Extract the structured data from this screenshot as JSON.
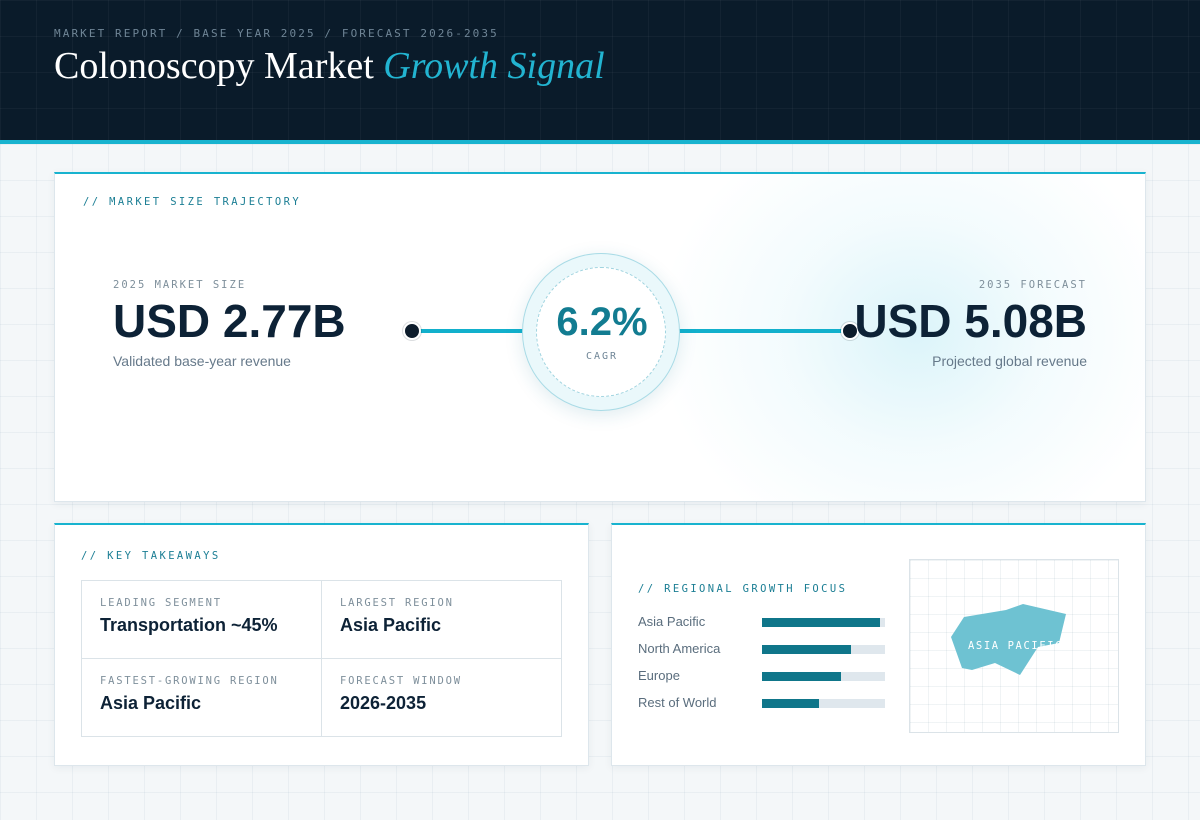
{
  "header": {
    "eyebrow": "MARKET REPORT / BASE YEAR 2025 / FORECAST 2026-2035",
    "title_main": "Colonoscopy Market",
    "title_accent": "Growth Signal"
  },
  "trajectory": {
    "section_label": "// MARKET SIZE TRAJECTORY",
    "start": {
      "caption": "2025 MARKET SIZE",
      "value": "USD 2.77B",
      "sub": "Validated base-year revenue"
    },
    "end": {
      "caption": "2035 FORECAST",
      "value": "USD 5.08B",
      "sub": "Projected global revenue"
    },
    "cagr": {
      "value": "6.2%",
      "caption": "CAGR"
    }
  },
  "takeaways": {
    "section_label": "// KEY TAKEAWAYS",
    "items": [
      {
        "caption": "LEADING SEGMENT",
        "value": "Transportation ~45%"
      },
      {
        "caption": "LARGEST REGION",
        "value": "Asia Pacific"
      },
      {
        "caption": "FASTEST-GROWING REGION",
        "value": "Asia Pacific"
      },
      {
        "caption": "FORECAST WINDOW",
        "value": "2026-2035"
      }
    ]
  },
  "regional": {
    "section_label": "// REGIONAL GROWTH FOCUS",
    "map_label": "ASIA PACIFIC"
  },
  "chart_data": {
    "type": "bar",
    "orientation": "horizontal",
    "categories": [
      "Asia Pacific",
      "North America",
      "Europe",
      "Rest of World"
    ],
    "values": [
      0.96,
      0.72,
      0.64,
      0.46
    ],
    "value_unit": "fraction of full bar",
    "title": "",
    "xlabel": "",
    "ylabel": "",
    "xlim": [
      0,
      1
    ],
    "grid": false,
    "colors": {
      "fill": "#0f768a",
      "track": "#dfe7ed"
    }
  },
  "colors": {
    "accent": "#18b3cf",
    "header_bg": "#0a1b2a",
    "cagr_text": "#127c91",
    "map_fill": "#5fbfd1"
  }
}
